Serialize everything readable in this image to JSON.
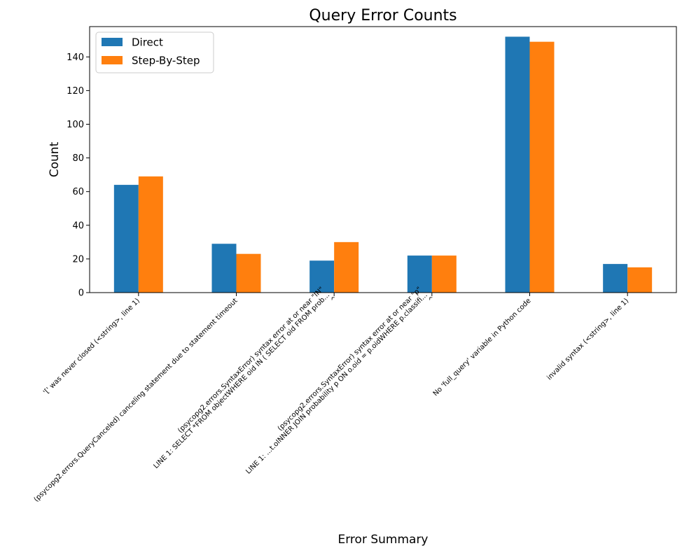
{
  "chart_data": {
    "type": "bar",
    "title": "Query Error Counts",
    "xlabel": "Error Summary",
    "ylabel": "Count",
    "ylim": [
      0,
      158
    ],
    "yticks": [
      0,
      20,
      40,
      60,
      80,
      100,
      120,
      140
    ],
    "grid": false,
    "legend_position": "top-left",
    "categories": [
      "'[' was never closed (<string>, line 1)",
      "(psycopg2.errors.QueryCanceled) canceling statement due to statement timeout",
      "(psycopg2.errors.SyntaxError) syntax error at or near \"IN\"\nLINE 1: SELECT *FROM objectWHERE oid IN (    SELECT oid    FROM prob...\n^",
      "(psycopg2.errors.SyntaxError) syntax error at or near \"p\"\nLINE 1: ...t.oINNER JOIN probability p ON o.oid = p.oidWHERE p.classifi...\n^",
      "No 'full_query' variable in Python code",
      "invalid syntax (<string>, line 1)"
    ],
    "series": [
      {
        "name": "Direct",
        "color": "#1f77b4",
        "values": [
          64,
          29,
          19,
          22,
          152,
          17
        ]
      },
      {
        "name": "Step-By-Step",
        "color": "#ff7f0e",
        "values": [
          69,
          23,
          30,
          22,
          149,
          15
        ]
      }
    ]
  }
}
